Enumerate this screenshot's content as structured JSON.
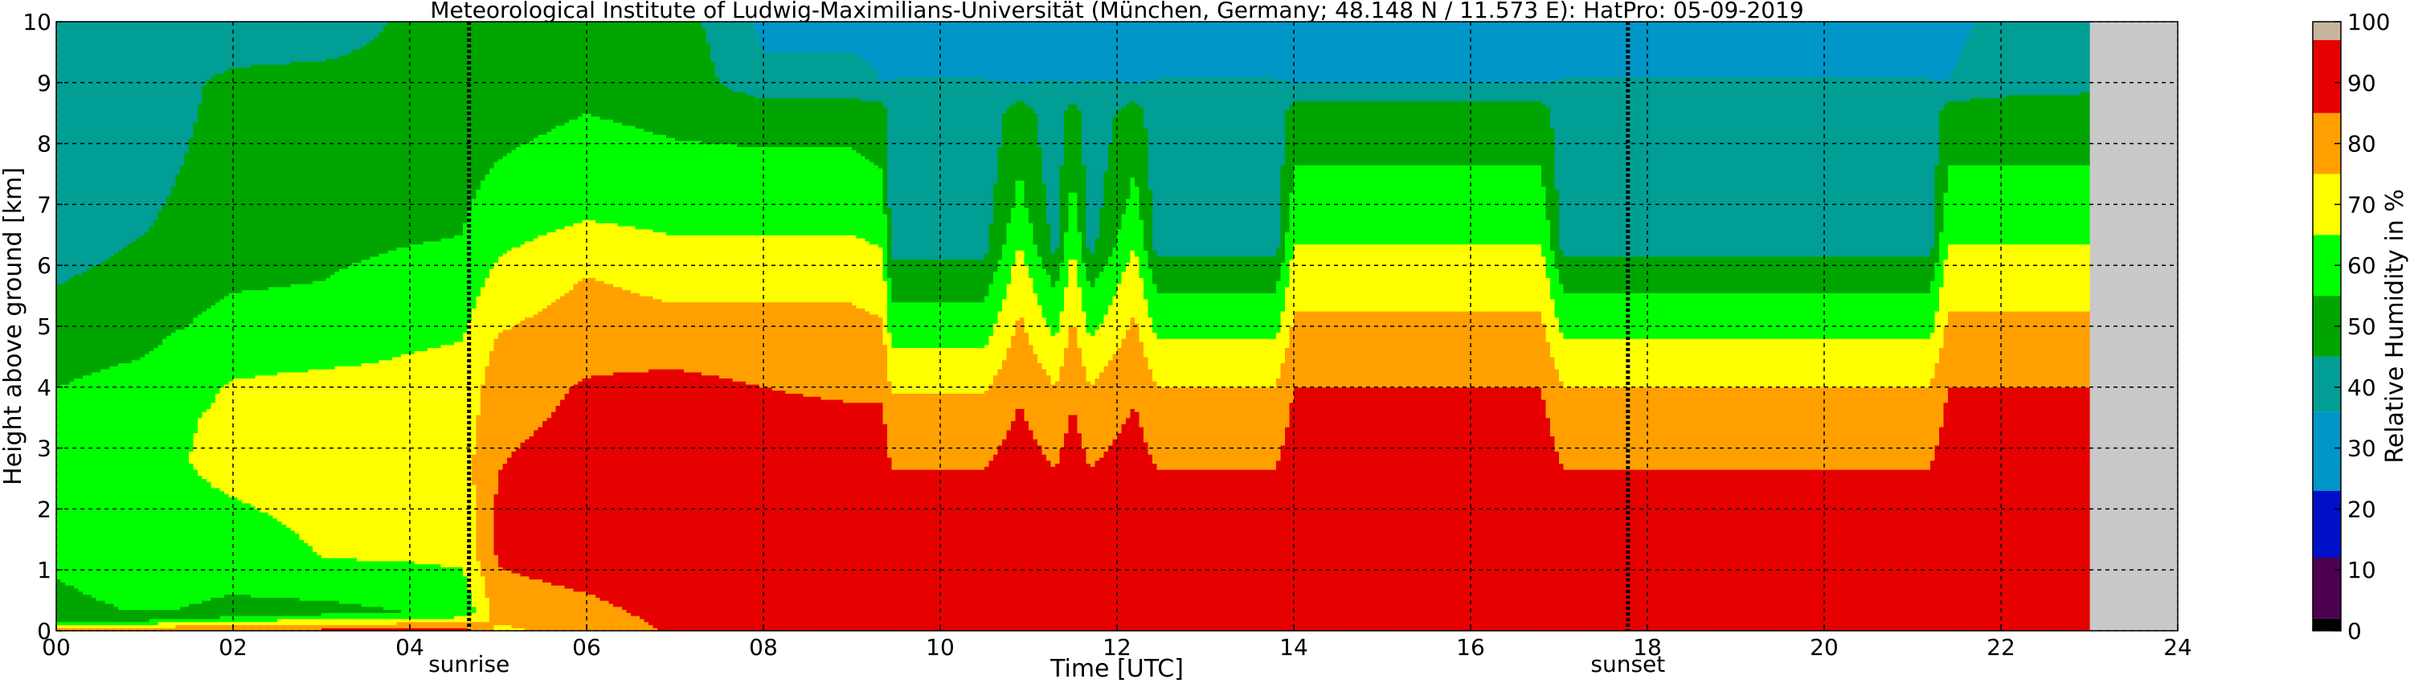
{
  "chart_data": {
    "type": "heatmap",
    "title": "Meteorological Institute of Ludwig-Maximilians-Universität (München, Germany; 48.148 N / 11.573 E):    HatPro: 05-09-2019",
    "xlabel": "Time [UTC]",
    "ylabel": "Height above ground [km]",
    "xlim": [
      0,
      24
    ],
    "ylim": [
      0,
      10
    ],
    "x_ticks": [
      "00",
      "02",
      "04",
      "06",
      "08",
      "10",
      "12",
      "14",
      "16",
      "18",
      "20",
      "22",
      "24"
    ],
    "y_ticks": [
      "0",
      "1",
      "2",
      "3",
      "4",
      "5",
      "6",
      "7",
      "8",
      "9",
      "10"
    ],
    "grid": true,
    "data_end_hour": 23.0,
    "markers": [
      {
        "label": "sunrise",
        "x": 4.67
      },
      {
        "label": "sunset",
        "x": 17.78
      }
    ],
    "colorbar": {
      "label": "Relative Humidity in %",
      "ticks": [
        "0",
        "10",
        "20",
        "30",
        "40",
        "50",
        "60",
        "70",
        "80",
        "90",
        "100"
      ],
      "bands": [
        {
          "from": 0,
          "to": 2,
          "color": "#000000"
        },
        {
          "from": 2,
          "to": 12,
          "color": "#4b0050"
        },
        {
          "from": 12,
          "to": 23,
          "color": "#0010c8"
        },
        {
          "from": 23,
          "to": 36,
          "color": "#0096c8"
        },
        {
          "from": 36,
          "to": 45,
          "color": "#009e94"
        },
        {
          "from": 45,
          "to": 55,
          "color": "#00a500"
        },
        {
          "from": 55,
          "to": 65,
          "color": "#00ff00"
        },
        {
          "from": 65,
          "to": 75,
          "color": "#ffff00"
        },
        {
          "from": 75,
          "to": 85,
          "color": "#ffa000"
        },
        {
          "from": 85,
          "to": 97,
          "color": "#e60000"
        },
        {
          "from": 97,
          "to": 100,
          "color": "#c8b49c"
        }
      ]
    },
    "regime_hours": [
      0,
      1,
      2,
      3,
      4,
      4.6,
      5,
      6,
      7,
      8,
      9,
      9.35,
      9.45,
      10.5,
      10.9,
      11.3,
      11.5,
      11.7,
      12.2,
      12.45,
      13.8,
      14.0,
      15,
      16,
      16.8,
      17.05,
      19,
      21.2,
      21.4,
      22,
      23
    ],
    "profiles_rh_percent": [
      {
        "heights_km": [
          0,
          0.2,
          0.35,
          1.2,
          3.5,
          4.5,
          6.5,
          10
        ],
        "values": [
          88,
          45,
          52,
          57,
          58,
          52,
          40,
          38
        ]
      },
      {
        "heights_km": [
          0,
          0.2,
          0.35,
          1.2,
          3.5,
          4.5,
          6.5,
          10
        ],
        "values": [
          88,
          50,
          56,
          62,
          62,
          55,
          45,
          36
        ]
      },
      {
        "heights_km": [
          0,
          0.25,
          1.2,
          2.8,
          4.0,
          5.0,
          6.5,
          9.0,
          10
        ],
        "values": [
          88,
          52,
          60,
          68,
          66,
          58,
          50,
          48,
          36
        ]
      },
      {
        "heights_km": [
          0,
          0.3,
          1.2,
          2.8,
          4.0,
          5.0,
          6.5,
          9.0,
          10
        ],
        "values": [
          88,
          52,
          65,
          70,
          68,
          58,
          52,
          50,
          36
        ]
      },
      {
        "heights_km": [
          0,
          0.3,
          1.3,
          2.8,
          4.0,
          5.5,
          6.5,
          9.0,
          10
        ],
        "values": [
          90,
          55,
          67,
          70,
          68,
          60,
          54,
          50,
          48
        ]
      },
      {
        "heights_km": [
          0,
          0.3,
          1.3,
          2.8,
          4.0,
          5.5,
          6.5,
          9.0,
          10
        ],
        "values": [
          90,
          57,
          68,
          71,
          69,
          61,
          55,
          50,
          48
        ]
      },
      {
        "heights_km": [
          0,
          0.3,
          1.5,
          3.0,
          4.5,
          5.5,
          7.0,
          8.5,
          10
        ],
        "values": [
          72,
          80,
          88,
          84,
          78,
          70,
          58,
          52,
          50
        ]
      },
      {
        "heights_km": [
          0,
          1.0,
          2.5,
          4.0,
          5.0,
          6.0,
          7.0,
          8.5,
          10
        ],
        "values": [
          80,
          88,
          90,
          86,
          80,
          74,
          62,
          55,
          52
        ]
      },
      {
        "heights_km": [
          0,
          1.0,
          2.5,
          4.0,
          5.0,
          6.0,
          7.0,
          8.5,
          10
        ],
        "values": [
          86,
          92,
          92,
          88,
          78,
          70,
          60,
          53,
          50
        ]
      },
      {
        "heights_km": [
          0,
          1.0,
          2.5,
          4.0,
          5.0,
          6.0,
          7.0,
          8.5,
          9.0,
          10
        ],
        "values": [
          88,
          92,
          90,
          85,
          78,
          70,
          60,
          52,
          38,
          34
        ]
      },
      {
        "heights_km": [
          0,
          1.0,
          2.5,
          4.0,
          5.0,
          6.0,
          7.0,
          8.5,
          9.0,
          10
        ],
        "values": [
          88,
          92,
          90,
          84,
          78,
          70,
          60,
          52,
          38,
          34
        ]
      },
      {
        "heights_km": [
          0,
          1.0,
          2.5,
          4.0,
          5.0,
          6.0,
          7.0,
          8.5,
          9.0,
          10
        ],
        "values": [
          88,
          92,
          90,
          84,
          76,
          68,
          58,
          50,
          36,
          34
        ]
      },
      {
        "heights_km": [
          0,
          1.0,
          2.5,
          3.5,
          4.3,
          5.0,
          5.8,
          6.3,
          10
        ],
        "values": [
          88,
          90,
          86,
          80,
          70,
          60,
          50,
          42,
          34
        ]
      },
      {
        "heights_km": [
          0,
          1.0,
          2.5,
          3.5,
          4.3,
          5.0,
          5.8,
          6.3,
          10
        ],
        "values": [
          88,
          90,
          86,
          80,
          70,
          60,
          50,
          42,
          34
        ]
      },
      {
        "heights_km": [
          0,
          1.0,
          2.5,
          4.0,
          5.0,
          6.0,
          7.0,
          8.5,
          9.0,
          10
        ],
        "values": [
          88,
          92,
          90,
          84,
          77,
          69,
          58,
          51,
          36,
          34
        ]
      },
      {
        "heights_km": [
          0,
          1.0,
          2.5,
          3.5,
          4.3,
          5.0,
          5.8,
          6.3,
          10
        ],
        "values": [
          88,
          90,
          86,
          80,
          72,
          62,
          52,
          42,
          34
        ]
      },
      {
        "heights_km": [
          0,
          1.0,
          2.5,
          4.0,
          5.0,
          6.0,
          7.0,
          8.5,
          9.0,
          10
        ],
        "values": [
          88,
          92,
          90,
          84,
          77,
          69,
          58,
          51,
          36,
          34
        ]
      },
      {
        "heights_km": [
          0,
          1.0,
          2.5,
          3.5,
          4.3,
          5.0,
          5.8,
          6.3,
          10
        ],
        "values": [
          88,
          90,
          86,
          80,
          72,
          62,
          52,
          42,
          34
        ]
      },
      {
        "heights_km": [
          0,
          1.0,
          2.5,
          4.0,
          5.0,
          6.0,
          7.0,
          8.5,
          9.0,
          10
        ],
        "values": [
          88,
          92,
          90,
          84,
          77,
          69,
          58,
          51,
          36,
          34
        ]
      },
      {
        "heights_km": [
          0,
          1.0,
          2.5,
          3.5,
          4.3,
          5.0,
          5.8,
          6.3,
          10
        ],
        "values": [
          88,
          90,
          86,
          80,
          72,
          62,
          52,
          42,
          34
        ]
      },
      {
        "heights_km": [
          0,
          1.0,
          2.5,
          3.5,
          4.3,
          5.0,
          5.8,
          6.3,
          10
        ],
        "values": [
          88,
          90,
          86,
          80,
          72,
          62,
          52,
          42,
          34
        ]
      },
      {
        "heights_km": [
          0,
          1.0,
          2.5,
          4.0,
          5.0,
          6.0,
          7.0,
          8.5,
          9.0,
          10
        ],
        "values": [
          88,
          93,
          91,
          85,
          77,
          69,
          58,
          51,
          36,
          34
        ]
      },
      {
        "heights_km": [
          0,
          1.0,
          2.5,
          4.0,
          5.0,
          6.0,
          7.0,
          8.5,
          9.0,
          10
        ],
        "values": [
          88,
          93,
          91,
          85,
          77,
          69,
          58,
          51,
          36,
          34
        ]
      },
      {
        "heights_km": [
          0,
          1.0,
          2.5,
          4.0,
          5.0,
          6.0,
          7.0,
          8.5,
          9.0,
          10
        ],
        "values": [
          88,
          93,
          91,
          85,
          77,
          69,
          58,
          51,
          36,
          34
        ]
      },
      {
        "heights_km": [
          0,
          1.0,
          2.5,
          4.0,
          5.0,
          6.0,
          7.0,
          8.5,
          9.0,
          10
        ],
        "values": [
          88,
          93,
          91,
          85,
          77,
          69,
          58,
          51,
          36,
          34
        ]
      },
      {
        "heights_km": [
          0,
          1.0,
          2.5,
          3.5,
          4.3,
          5.0,
          5.8,
          6.3,
          10
        ],
        "values": [
          88,
          90,
          86,
          80,
          72,
          62,
          52,
          42,
          34
        ]
      },
      {
        "heights_km": [
          0,
          1.0,
          2.5,
          3.5,
          4.3,
          5.0,
          5.8,
          6.3,
          10
        ],
        "values": [
          88,
          90,
          86,
          80,
          72,
          62,
          52,
          42,
          34
        ]
      },
      {
        "heights_km": [
          0,
          1.0,
          2.5,
          3.5,
          4.3,
          5.0,
          5.8,
          6.3,
          10
        ],
        "values": [
          88,
          90,
          86,
          80,
          72,
          62,
          52,
          42,
          34
        ]
      },
      {
        "heights_km": [
          0,
          1.0,
          2.5,
          4.0,
          5.0,
          6.0,
          7.0,
          8.5,
          9.0,
          10
        ],
        "values": [
          88,
          93,
          91,
          85,
          77,
          69,
          58,
          51,
          36,
          34
        ]
      },
      {
        "heights_km": [
          0,
          1.0,
          2.5,
          4.0,
          5.0,
          6.0,
          7.0,
          8.5,
          9.0,
          10
        ],
        "values": [
          88,
          93,
          91,
          85,
          77,
          69,
          58,
          51,
          40,
          38
        ]
      },
      {
        "heights_km": [
          0,
          1.0,
          2.5,
          4.0,
          5.0,
          6.0,
          7.0,
          8.5,
          9.0,
          10
        ],
        "values": [
          88,
          93,
          91,
          85,
          77,
          69,
          58,
          51,
          42,
          40
        ]
      }
    ]
  }
}
